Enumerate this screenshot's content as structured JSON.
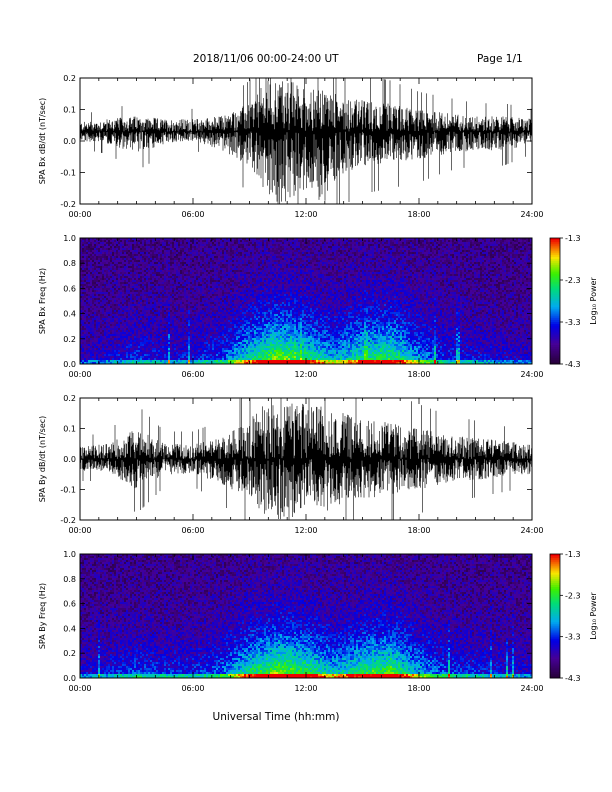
{
  "header": {
    "title": "2018/11/06  00:00-24:00 UT",
    "page": "Page 1/1"
  },
  "x_axis": {
    "label": "Universal Time (hh:mm)",
    "ticks": [
      "00:00",
      "06:00",
      "12:00",
      "18:00",
      "24:00"
    ],
    "range_hours": [
      0,
      24
    ]
  },
  "colorbar": {
    "label": "Log₁₀ Power",
    "ticks": [
      "-1.3",
      "-2.3",
      "-3.3",
      "-4.3"
    ],
    "range": [
      -4.3,
      -1.3
    ]
  },
  "colors": {
    "axis": "#000000",
    "trace": "#000000"
  },
  "chart_data": [
    {
      "type": "line",
      "ylabel": "SPA Bx dB/dt (nT/sec)",
      "xlabel": "",
      "ylim": [
        -0.2,
        0.2
      ],
      "yticks": [
        "-0.2",
        "-0.1",
        "0.0",
        "0.1",
        "0.2"
      ],
      "x": [
        0,
        1.5,
        3.0,
        4.5,
        6.0,
        7.5,
        9.0,
        10.0,
        10.5,
        11.0,
        12.0,
        13.0,
        14.0,
        15.0,
        16.5,
        18.0,
        19.5,
        21.0,
        22.5,
        24.0
      ],
      "envelope_upper": [
        0.06,
        0.07,
        0.08,
        0.07,
        0.07,
        0.08,
        0.12,
        0.2,
        0.2,
        0.2,
        0.17,
        0.16,
        0.15,
        0.13,
        0.12,
        0.1,
        0.09,
        0.08,
        0.08,
        0.07
      ],
      "envelope_lower": [
        0.0,
        -0.01,
        -0.04,
        -0.01,
        0.0,
        -0.03,
        -0.08,
        -0.2,
        -0.2,
        -0.2,
        -0.16,
        -0.2,
        -0.1,
        -0.08,
        -0.07,
        -0.06,
        -0.04,
        -0.03,
        -0.03,
        -0.01
      ],
      "baseline": 0.03
    },
    {
      "type": "heatmap",
      "ylabel": "SPA Bx Freq (Hz)",
      "xlabel": "",
      "ylim": [
        0.0,
        1.0
      ],
      "yticks": [
        "0.0",
        "0.2",
        "0.4",
        "0.6",
        "0.8",
        "1.0"
      ],
      "activity_hours": [
        0,
        1.5,
        3.0,
        4.5,
        6.0,
        7.5,
        9.0,
        10.5,
        12.0,
        13.5,
        15.0,
        16.5,
        18.0,
        19.5,
        21.0,
        22.5,
        24.0
      ],
      "activity_level": [
        0.15,
        0.2,
        0.3,
        0.25,
        0.25,
        0.35,
        0.7,
        1.0,
        0.8,
        0.55,
        0.75,
        0.85,
        0.5,
        0.3,
        0.25,
        0.2,
        0.15
      ],
      "crange": [
        -4.3,
        -1.3
      ]
    },
    {
      "type": "line",
      "ylabel": "SPA By dB/dt (nT/sec)",
      "xlabel": "",
      "ylim": [
        -0.2,
        0.2
      ],
      "yticks": [
        "-0.2",
        "-0.1",
        "0.0",
        "0.1",
        "0.2"
      ],
      "x": [
        0,
        1.5,
        3.0,
        4.5,
        6.0,
        7.5,
        9.0,
        10.0,
        10.5,
        11.0,
        12.0,
        13.0,
        14.0,
        15.0,
        16.5,
        18.0,
        19.5,
        21.0,
        22.5,
        24.0
      ],
      "envelope_upper": [
        0.04,
        0.05,
        0.1,
        0.05,
        0.05,
        0.07,
        0.13,
        0.2,
        0.2,
        0.2,
        0.18,
        0.17,
        0.15,
        0.13,
        0.12,
        0.1,
        0.08,
        0.07,
        0.06,
        0.05
      ],
      "envelope_lower": [
        -0.04,
        -0.04,
        -0.1,
        -0.05,
        -0.05,
        -0.08,
        -0.13,
        -0.2,
        -0.2,
        -0.2,
        -0.18,
        -0.18,
        -0.15,
        -0.13,
        -0.12,
        -0.1,
        -0.08,
        -0.07,
        -0.06,
        -0.05
      ],
      "baseline": 0.0
    },
    {
      "type": "heatmap",
      "ylabel": "SPA By Freq (Hz)",
      "xlabel": "",
      "ylim": [
        0.0,
        1.0
      ],
      "yticks": [
        "0.0",
        "0.2",
        "0.4",
        "0.6",
        "0.8",
        "1.0"
      ],
      "activity_hours": [
        0,
        1.5,
        3.0,
        4.5,
        6.0,
        7.5,
        9.0,
        10.5,
        12.0,
        13.5,
        15.0,
        16.5,
        18.0,
        19.5,
        21.0,
        22.5,
        24.0
      ],
      "activity_level": [
        0.2,
        0.25,
        0.35,
        0.3,
        0.3,
        0.4,
        0.75,
        1.0,
        0.85,
        0.6,
        0.8,
        0.9,
        0.55,
        0.35,
        0.3,
        0.25,
        0.2
      ],
      "crange": [
        -4.3,
        -1.3
      ]
    }
  ]
}
